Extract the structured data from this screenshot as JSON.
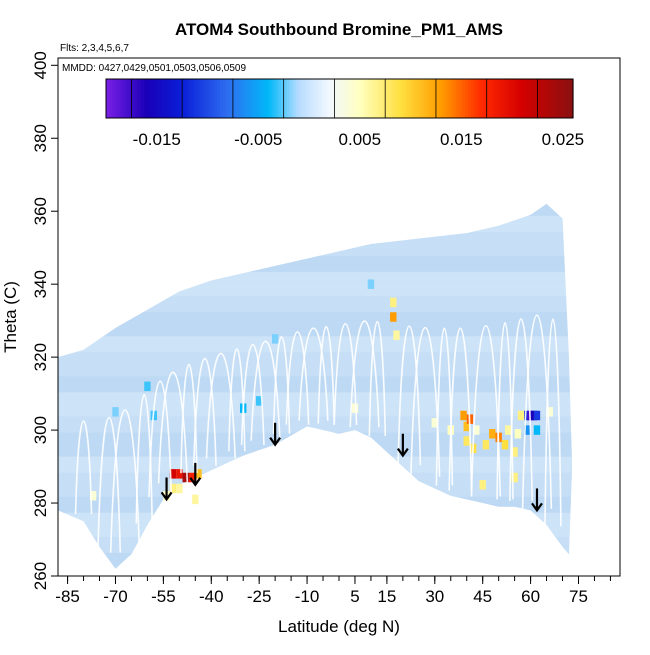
{
  "chart_data": {
    "type": "heatmap",
    "title": "ATOM4 Southbound Bromine_PM1_AMS",
    "flights_note": "Flts: 2,3,4,5,6,7",
    "mmdd_note": "MMDD: 0427,0429,0501,0503,0506,0509",
    "xlabel": "Latitude (deg N)",
    "ylabel": "Theta (C)",
    "xlim": [
      -88,
      88
    ],
    "ylim": [
      260,
      402
    ],
    "x_ticks": [
      -85,
      -70,
      -55,
      -40,
      -25,
      -10,
      5,
      15,
      30,
      45,
      60,
      75
    ],
    "x_tick_labels": [
      "-85",
      "-70",
      "-55",
      "-40",
      "-25",
      "-10",
      "5",
      "15",
      "30",
      "45",
      "60",
      "75"
    ],
    "x_minor_step": 5,
    "y_ticks": [
      260,
      280,
      300,
      320,
      340,
      360,
      380,
      400
    ],
    "y_tick_labels": [
      "260",
      "280",
      "300",
      "320",
      "340",
      "360",
      "380",
      "400"
    ],
    "colorbar": {
      "range": [
        -0.02,
        0.026
      ],
      "ticks": [
        -0.015,
        -0.005,
        0.005,
        0.015,
        0.025
      ],
      "tick_labels": [
        "-0.015",
        "-0.005",
        "0.005",
        "0.015",
        "0.025"
      ],
      "dividers": [
        -0.0175,
        -0.0125,
        -0.0075,
        -0.0025,
        0.0025,
        0.0075,
        0.0125,
        0.0175,
        0.0225
      ],
      "color_stops": [
        [
          -0.02,
          "#7a1fe6"
        ],
        [
          -0.016,
          "#1a00b8"
        ],
        [
          -0.0125,
          "#0a1ed8"
        ],
        [
          -0.008,
          "#2f6ef0"
        ],
        [
          -0.004,
          "#00b8f8"
        ],
        [
          -0.001,
          "#b8dcff"
        ],
        [
          0.002,
          "#f2f8ff"
        ],
        [
          0.005,
          "#ffffc0"
        ],
        [
          0.009,
          "#ffe040"
        ],
        [
          0.013,
          "#ff9c00"
        ],
        [
          0.017,
          "#ff2a00"
        ],
        [
          0.021,
          "#d40000"
        ],
        [
          0.026,
          "#8a1010"
        ]
      ]
    },
    "colors": {
      "background_field": "#c4def6",
      "trajectory": "#ffffff"
    },
    "domain_upper": [
      [
        -88,
        320
      ],
      [
        -80,
        322
      ],
      [
        -70,
        328
      ],
      [
        -60,
        333
      ],
      [
        -50,
        338
      ],
      [
        -40,
        341
      ],
      [
        -30,
        343
      ],
      [
        -20,
        345
      ],
      [
        -10,
        347
      ],
      [
        0,
        349
      ],
      [
        10,
        351
      ],
      [
        20,
        352
      ],
      [
        30,
        353
      ],
      [
        40,
        354
      ],
      [
        50,
        356
      ],
      [
        60,
        359
      ],
      [
        65,
        362
      ],
      [
        70,
        358
      ],
      [
        72,
        320
      ],
      [
        73,
        290
      ],
      [
        72,
        266
      ]
    ],
    "domain_lower": [
      [
        -88,
        278
      ],
      [
        -80,
        275
      ],
      [
        -75,
        268
      ],
      [
        -70,
        262
      ],
      [
        -65,
        266
      ],
      [
        -60,
        274
      ],
      [
        -55,
        281
      ],
      [
        -50,
        285
      ],
      [
        -45,
        287
      ],
      [
        -40,
        289
      ],
      [
        -35,
        291
      ],
      [
        -30,
        293
      ],
      [
        -20,
        296
      ],
      [
        -10,
        301
      ],
      [
        0,
        299
      ],
      [
        5,
        300
      ],
      [
        10,
        298
      ],
      [
        15,
        294
      ],
      [
        20,
        290
      ],
      [
        25,
        286
      ],
      [
        30,
        284
      ],
      [
        35,
        282
      ],
      [
        40,
        281
      ],
      [
        45,
        280
      ],
      [
        50,
        279
      ],
      [
        55,
        279
      ],
      [
        60,
        278
      ],
      [
        65,
        274
      ],
      [
        70,
        268
      ],
      [
        72,
        266
      ]
    ],
    "cells": [
      [
        -52,
        288,
        0.021
      ],
      [
        -50,
        288,
        0.019
      ],
      [
        -48,
        287,
        0.024
      ],
      [
        -46,
        287,
        0.018
      ],
      [
        -44,
        288,
        0.011
      ],
      [
        -52,
        284,
        0.007
      ],
      [
        -50,
        284,
        0.006
      ],
      [
        -54,
        282,
        0.005
      ],
      [
        17,
        331,
        0.013
      ],
      [
        17,
        335,
        0.007
      ],
      [
        18,
        326,
        0.006
      ],
      [
        39,
        304,
        0.013
      ],
      [
        40,
        301,
        0.011
      ],
      [
        41,
        303,
        0.015
      ],
      [
        40,
        297,
        0.008
      ],
      [
        42,
        295,
        0.009
      ],
      [
        43,
        300,
        0.004
      ],
      [
        46,
        296,
        0.008
      ],
      [
        48,
        299,
        0.012
      ],
      [
        50,
        298,
        0.014
      ],
      [
        52,
        296,
        0.009
      ],
      [
        53,
        300,
        0.006
      ],
      [
        55,
        294,
        0.007
      ],
      [
        56,
        299,
        0.005
      ],
      [
        55,
        287,
        0.007
      ],
      [
        57,
        304,
        0.007
      ],
      [
        59,
        304,
        -0.012
      ],
      [
        60,
        304,
        -0.018
      ],
      [
        61,
        304,
        -0.016
      ],
      [
        62,
        304,
        -0.011
      ],
      [
        59,
        300,
        -0.006
      ],
      [
        62,
        300,
        -0.004
      ],
      [
        -30,
        306,
        -0.004
      ],
      [
        -25,
        308,
        -0.003
      ],
      [
        -70,
        305,
        -0.002
      ],
      [
        -60,
        312,
        -0.003
      ],
      [
        5,
        306,
        0.004
      ],
      [
        -58,
        304,
        -0.003
      ],
      [
        -77,
        282,
        0.004
      ],
      [
        -45,
        281,
        0.006
      ],
      [
        45,
        285,
        0.007
      ],
      [
        30,
        302,
        0.004
      ],
      [
        35,
        300,
        0.005
      ],
      [
        66,
        305,
        0.004
      ],
      [
        -20,
        325,
        -0.002
      ],
      [
        10,
        340,
        -0.002
      ]
    ],
    "arrows": [
      [
        -54,
        287
      ],
      [
        -45,
        291
      ],
      [
        -20,
        302
      ],
      [
        20,
        299
      ],
      [
        62,
        284
      ]
    ],
    "trajectory_peaks": [
      -80,
      -72,
      -67,
      -61,
      -56,
      -52,
      -47,
      -42,
      -37,
      -32,
      -27,
      -23,
      -18,
      -13,
      -8,
      -4,
      2,
      8,
      12,
      22,
      27,
      33,
      38,
      46,
      52,
      57,
      62,
      67
    ]
  }
}
